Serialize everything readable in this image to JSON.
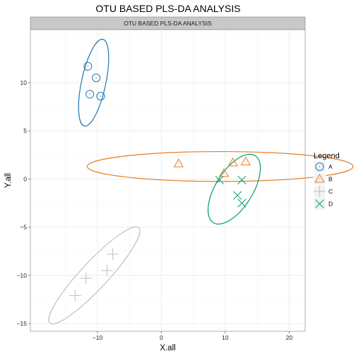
{
  "chart_data": {
    "type": "scatter",
    "title": "OTU BASED PLS-DA ANALYSIS",
    "facet_label": "OTU BASED PLS-DA ANALYSIS",
    "xlabel": "X.all",
    "ylabel": "Y.all",
    "xlim": [
      -20.5,
      22.5
    ],
    "ylim": [
      -15.8,
      15.5
    ],
    "x_ticks": [
      -10,
      0,
      10,
      20
    ],
    "y_ticks": [
      -15,
      -10,
      -5,
      0,
      5,
      10
    ],
    "x_tick_labels": [
      "−10",
      "0",
      "10",
      "20"
    ],
    "y_tick_labels": [
      "−15",
      "−10",
      "−5",
      "0",
      "5",
      "10"
    ],
    "grid": true,
    "legend": {
      "title": "Legend",
      "placement": "right"
    },
    "series": [
      {
        "name": "A",
        "color": "#1f78b4",
        "marker": "circle",
        "points": [
          [
            -11.5,
            11.7
          ],
          [
            -10.2,
            10.5
          ],
          [
            -11.2,
            8.8
          ],
          [
            -9.5,
            8.6
          ]
        ],
        "ellipse": {
          "center": [
            -10.6,
            10.0
          ],
          "rx": 1.9,
          "ry": 4.6,
          "angle_deg": -12
        }
      },
      {
        "name": "B",
        "color": "#e67e22",
        "marker": "triangle",
        "points": [
          [
            2.7,
            1.6
          ],
          [
            9.8,
            0.6
          ],
          [
            11.2,
            1.7
          ],
          [
            13.2,
            1.8
          ]
        ],
        "ellipse": {
          "center": [
            9.2,
            1.3
          ],
          "rx": 20.8,
          "ry": 1.55,
          "angle_deg": 0
        }
      },
      {
        "name": "C",
        "color": "#bfbfbf",
        "marker": "plus",
        "points": [
          [
            -13.5,
            -12.1
          ],
          [
            -11.8,
            -10.3
          ],
          [
            -8.5,
            -9.5
          ],
          [
            -7.6,
            -7.8
          ]
        ],
        "ellipse": {
          "center": [
            -10.5,
            -10.0
          ],
          "rx": 10.2,
          "ry": 1.4,
          "angle_deg": 47
        }
      },
      {
        "name": "D",
        "color": "#009e73",
        "marker": "x",
        "points": [
          [
            9.1,
            -0.1
          ],
          [
            12.6,
            -0.1
          ],
          [
            11.9,
            -1.7
          ],
          [
            12.6,
            -2.5
          ]
        ],
        "ellipse": {
          "center": [
            11.4,
            -1.05
          ],
          "rx": 2.9,
          "ry": 4.1,
          "angle_deg": -32
        }
      }
    ]
  }
}
